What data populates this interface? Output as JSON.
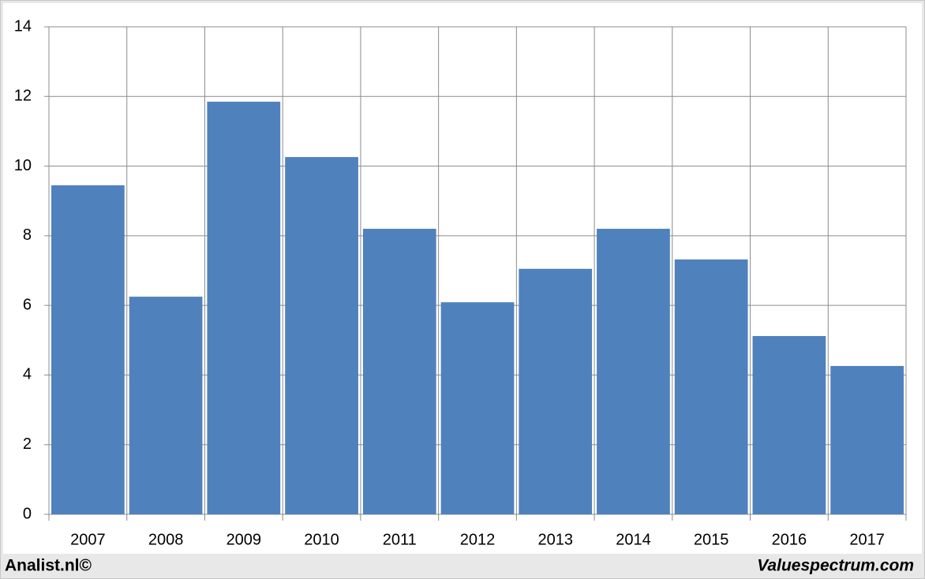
{
  "chart_data": {
    "type": "bar",
    "categories": [
      "2007",
      "2008",
      "2009",
      "2010",
      "2011",
      "2012",
      "2013",
      "2014",
      "2015",
      "2016",
      "2017"
    ],
    "values": [
      9.45,
      6.25,
      11.85,
      10.26,
      8.2,
      6.09,
      7.05,
      8.2,
      7.32,
      5.12,
      4.26
    ],
    "color": "#4f81bd",
    "ylim": [
      0,
      14
    ],
    "yticks": [
      0,
      2,
      4,
      6,
      8,
      10,
      12,
      14
    ],
    "grid": true
  },
  "footer": {
    "left": "Analist.nl©",
    "right": "Valuespectrum.com"
  }
}
